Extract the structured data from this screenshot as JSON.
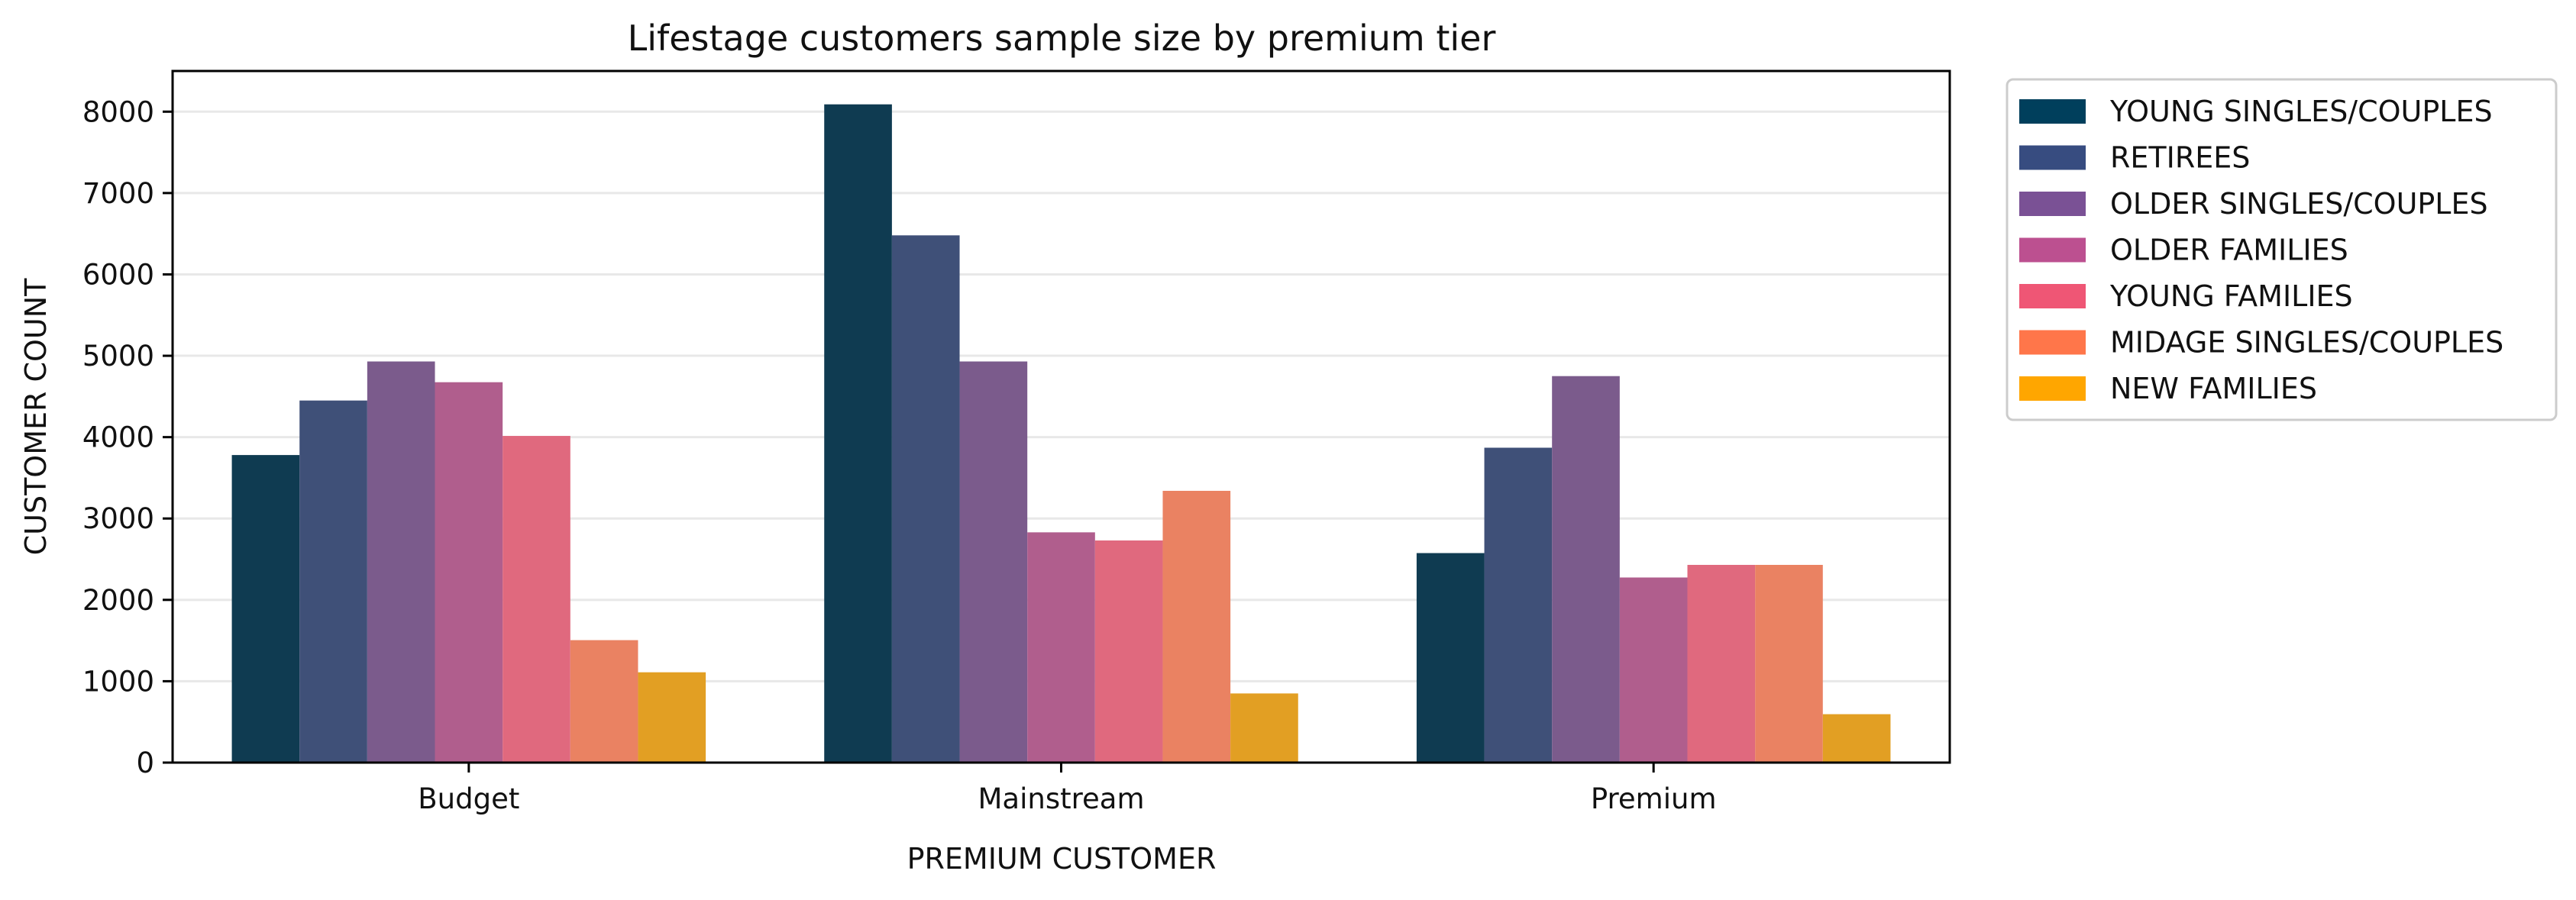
{
  "chart_data": {
    "type": "bar",
    "title": "Lifestage customers sample size by premium tier",
    "xlabel": "PREMIUM CUSTOMER",
    "ylabel": "CUSTOMER COUNT",
    "ylim": [
      0,
      8500
    ],
    "yticks": [
      0,
      1000,
      2000,
      3000,
      4000,
      5000,
      6000,
      7000,
      8000
    ],
    "grid": "y-major",
    "legend_position": "outside-top-right",
    "categories": [
      "Budget",
      "Mainstream",
      "Premium"
    ],
    "series": [
      {
        "name": "YOUNG SINGLES/COUPLES",
        "color": "#0f3b51",
        "values": [
          3780,
          8090,
          2575
        ]
      },
      {
        "name": "RETIREES",
        "color": "#3f5078",
        "values": [
          4450,
          6480,
          3870
        ]
      },
      {
        "name": "OLDER SINGLES/COUPLES",
        "color": "#7b5b8c",
        "values": [
          4930,
          4930,
          4750
        ]
      },
      {
        "name": "OLDER FAMILIES",
        "color": "#b05e8d",
        "values": [
          4675,
          2830,
          2275
        ]
      },
      {
        "name": "YOUNG FAMILIES",
        "color": "#e0697e",
        "values": [
          4015,
          2730,
          2430
        ]
      },
      {
        "name": "MIDAGE SINGLES/COUPLES",
        "color": "#ea8262",
        "values": [
          1505,
          3340,
          2430
        ]
      },
      {
        "name": "NEW FAMILIES",
        "color": "#e29f23",
        "values": [
          1110,
          850,
          595
        ]
      }
    ],
    "legend_colors": [
      "#003f5c",
      "#374c80",
      "#7a5195",
      "#bc5090",
      "#ef5675",
      "#ff764a",
      "#ffa600"
    ]
  }
}
